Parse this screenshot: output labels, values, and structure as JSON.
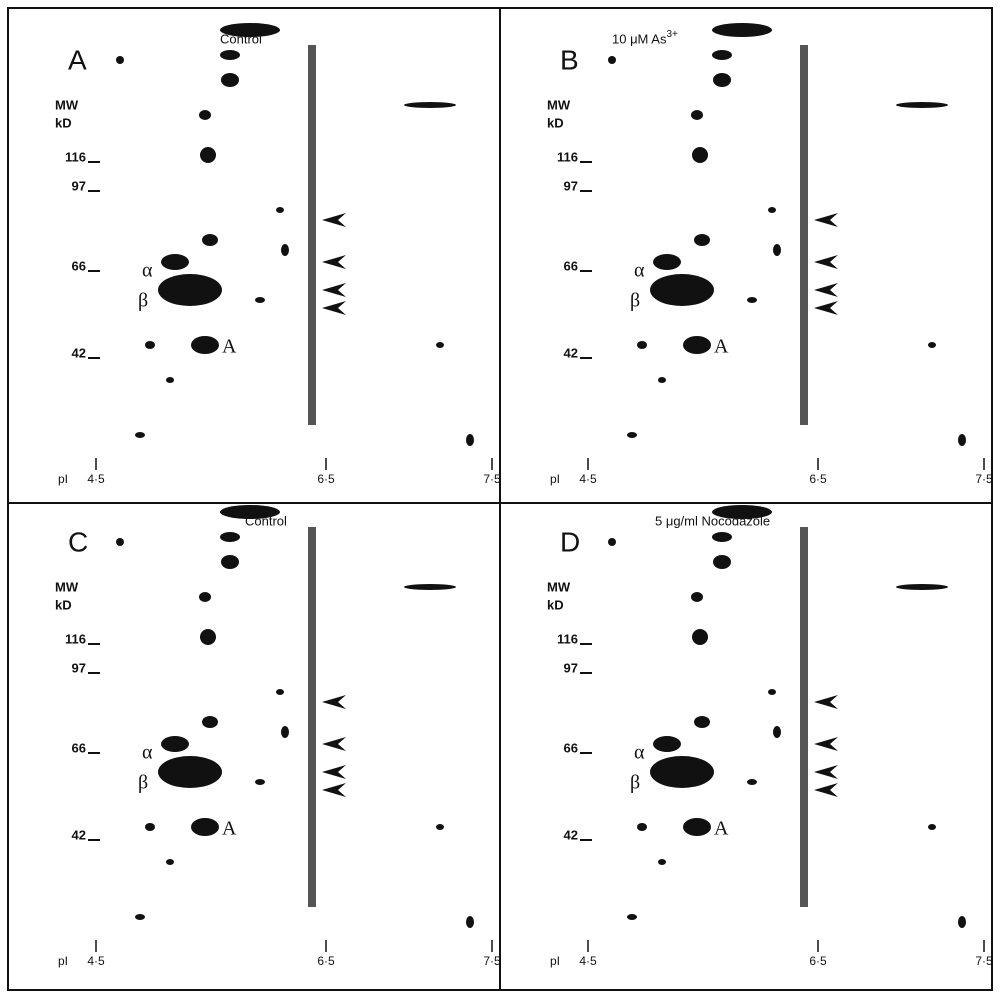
{
  "panels": [
    {
      "letter": "A",
      "title": "Control",
      "mw_header": [
        "MW",
        "kD"
      ],
      "mw_markers": [
        "116",
        "97",
        "66",
        "42"
      ],
      "pi_label": "pI",
      "pi_markers": [
        "4·5",
        "6·5",
        "7·5"
      ],
      "spot_labels": [
        "α",
        "β",
        "A"
      ]
    },
    {
      "letter": "B",
      "title": "10 μM  As",
      "title_sup": "3+",
      "mw_header": [
        "MW",
        "kD"
      ],
      "mw_markers": [
        "116",
        "97",
        "66",
        "42"
      ],
      "pi_label": "pI",
      "pi_markers": [
        "4·5",
        "6·5",
        "7·5"
      ],
      "spot_labels": [
        "α",
        "β",
        "A"
      ]
    },
    {
      "letter": "C",
      "title": "Control",
      "mw_header": [
        "MW",
        "kD"
      ],
      "mw_markers": [
        "116",
        "97",
        "66",
        "42"
      ],
      "pi_label": "pI",
      "pi_markers": [
        "4·5",
        "6·5",
        "7·5"
      ],
      "spot_labels": [
        "α",
        "β",
        "A"
      ]
    },
    {
      "letter": "D",
      "title": "5 μg/ml Nocodazole",
      "mw_header": [
        "MW",
        "kD"
      ],
      "mw_markers": [
        "116",
        "97",
        "66",
        "42"
      ],
      "pi_label": "pI",
      "pi_markers": [
        "4·5",
        "6·5",
        "7·5"
      ],
      "spot_labels": [
        "α",
        "β",
        "A"
      ]
    }
  ]
}
